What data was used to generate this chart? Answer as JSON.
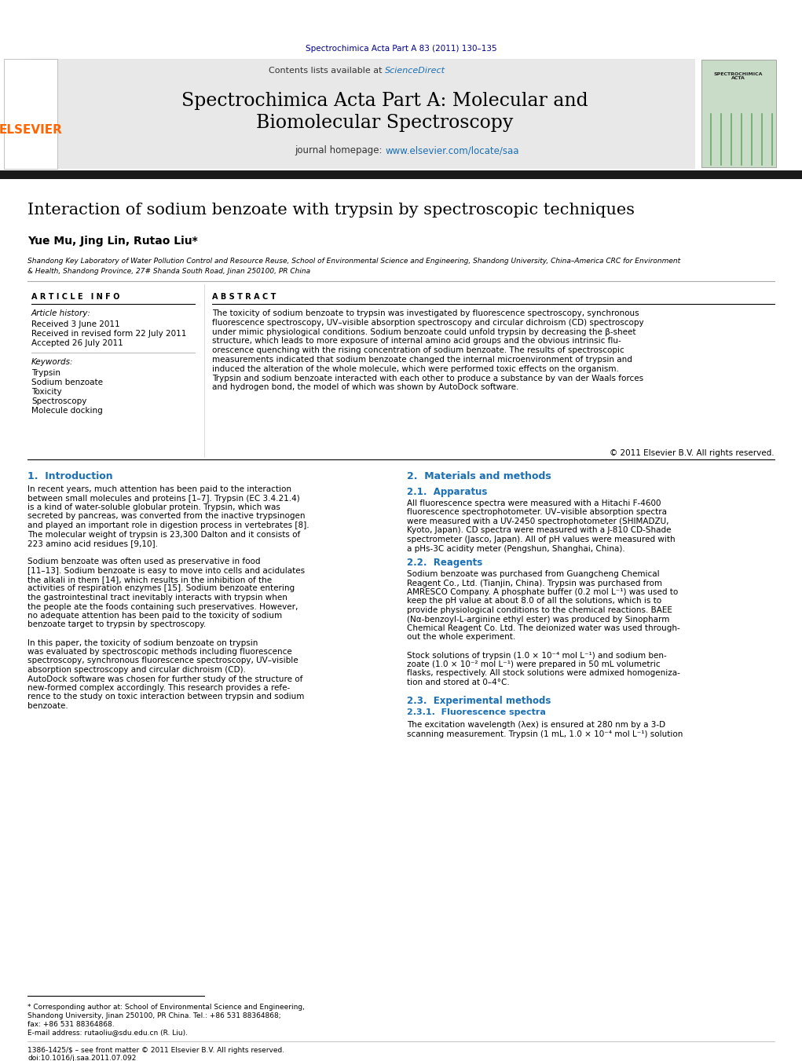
{
  "page_width": 10.21,
  "page_height": 13.51,
  "background_color": "#ffffff",
  "header_journal_ref": "Spectrochimica Acta Part A 83 (2011) 130–135",
  "header_journal_ref_color": "#00008B",
  "journal_banner_bg": "#e8e8e8",
  "sciencedirect_color": "#1a6fb5",
  "journal_name_line1": "Spectrochimica Acta Part A: Molecular and",
  "journal_name_line2": "Biomolecular Spectroscopy",
  "journal_homepage_prefix": "journal homepage: ",
  "journal_homepage_url": "www.elsevier.com/locate/saa",
  "elsevier_color": "#ff6600",
  "elsevier_text": "ELSEVIER",
  "black_bar_color": "#1a1a1a",
  "paper_title": "Interaction of sodium benzoate with trypsin by spectroscopic techniques",
  "authors": "Yue Mu, Jing Lin, Rutao Liu*",
  "affiliation_line1": "Shandong Key Laboratory of Water Pollution Control and Resource Reuse, School of Environmental Science and Engineering, Shandong University, China–America CRC for Environment",
  "affiliation_line2": "& Health, Shandong Province, 27# Shanda South Road, Jinan 250100, PR China",
  "article_info_header": "A R T I C L E   I N F O",
  "abstract_header": "A B S T R A C T",
  "article_history_label": "Article history:",
  "received_1": "Received 3 June 2011",
  "received_2": "Received in revised form 22 July 2011",
  "accepted": "Accepted 26 July 2011",
  "keywords_label": "Keywords:",
  "keywords": [
    "Trypsin",
    "Sodium benzoate",
    "Toxicity",
    "Spectroscopy",
    "Molecule docking"
  ],
  "abstract_text_lines": [
    "The toxicity of sodium benzoate to trypsin was investigated by fluorescence spectroscopy, synchronous",
    "fluorescence spectroscopy, UV–visible absorption spectroscopy and circular dichroism (CD) spectroscopy",
    "under mimic physiological conditions. Sodium benzoate could unfold trypsin by decreasing the β-sheet",
    "structure, which leads to more exposure of internal amino acid groups and the obvious intrinsic flu-",
    "orescence quenching with the rising concentration of sodium benzoate. The results of spectroscopic",
    "measurements indicated that sodium benzoate changed the internal microenvironment of trypsin and",
    "induced the alteration of the whole molecule, which were performed toxic effects on the organism.",
    "Trypsin and sodium benzoate interacted with each other to produce a substance by van der Waals forces",
    "and hydrogen bond, the model of which was shown by AutoDock software."
  ],
  "copyright": "© 2011 Elsevier B.V. All rights reserved.",
  "intro_header": "1.  Introduction",
  "materials_header": "2.  Materials and methods",
  "materials_sub1": "2.1.  Apparatus",
  "reagents_sub": "2.2.  Reagents",
  "exp_methods_sub": "2.3.  Experimental methods",
  "exp_methods_sub2": "2.3.1.  Fluorescence spectra",
  "footer_issn": "1386-1425/$ – see front matter © 2011 Elsevier B.V. All rights reserved.",
  "footer_doi": "doi:10.1016/j.saa.2011.07.092",
  "journal_cover_bg": "#c8dcc8",
  "text_color": "#000000",
  "link_color": "#1a6fb5",
  "intro_lines": [
    "In recent years, much attention has been paid to the interaction",
    "between small molecules and proteins [1–7]. Trypsin (EC 3.4.21.4)",
    "is a kind of water-soluble globular protein. Trypsin, which was",
    "secreted by pancreas, was converted from the inactive trypsinogen",
    "and played an important role in digestion process in vertebrates [8].",
    "The molecular weight of trypsin is 23,300 Dalton and it consists of",
    "223 amino acid residues [9,10].",
    "",
    "Sodium benzoate was often used as preservative in food",
    "[11–13]. Sodium benzoate is easy to move into cells and acidulates",
    "the alkali in them [14], which results in the inhibition of the",
    "activities of respiration enzymes [15]. Sodium benzoate entering",
    "the gastrointestinal tract inevitably interacts with trypsin when",
    "the people ate the foods containing such preservatives. However,",
    "no adequate attention has been paid to the toxicity of sodium",
    "benzoate target to trypsin by spectroscopy.",
    "",
    "In this paper, the toxicity of sodium benzoate on trypsin",
    "was evaluated by spectroscopic methods including fluorescence",
    "spectroscopy, synchronous fluorescence spectroscopy, UV–visible",
    "absorption spectroscopy and circular dichroism (CD).",
    "AutoDock software was chosen for further study of the structure of",
    "new-formed complex accordingly. This research provides a refe-",
    "rence to the study on toxic interaction between trypsin and sodium",
    "benzoate."
  ],
  "apparatus_lines": [
    "All fluorescence spectra were measured with a Hitachi F-4600",
    "fluorescence spectrophotometer. UV–visible absorption spectra",
    "were measured with a UV-2450 spectrophotometer (SHIMADZU,",
    "Kyoto, Japan). CD spectra were measured with a J-810 CD-Shade",
    "spectrometer (Jasco, Japan). All of pH values were measured with",
    "a pHs-3C acidity meter (Pengshun, Shanghai, China)."
  ],
  "reagents_lines": [
    "Sodium benzoate was purchased from Guangcheng Chemical",
    "Reagent Co., Ltd. (Tianjin, China). Trypsin was purchased from",
    "AMRESCO Company. A phosphate buffer (0.2 mol L⁻¹) was used to",
    "keep the pH value at about 8.0 of all the solutions, which is to",
    "provide physiological conditions to the chemical reactions. BAEE",
    "(Nα-benzoyl-L-arginine ethyl ester) was produced by Sinopharm",
    "Chemical Reagent Co. Ltd. The deionized water was used through-",
    "out the whole experiment.",
    "",
    "Stock solutions of trypsin (1.0 × 10⁻⁴ mol L⁻¹) and sodium ben-",
    "zoate (1.0 × 10⁻² mol L⁻¹) were prepared in 50 mL volumetric",
    "flasks, respectively. All stock solutions were admixed homogeniza-",
    "tion and stored at 0–4°C."
  ],
  "fluorescence_lines": [
    "The excitation wavelength (λex) is ensured at 280 nm by a 3-D",
    "scanning measurement. Trypsin (1 mL, 1.0 × 10⁻⁴ mol L⁻¹) solution"
  ],
  "footnote_lines": [
    "* Corresponding author at: School of Environmental Science and Engineering,",
    "Shandong University, Jinan 250100, PR China. Tel.: +86 531 88364868;",
    "fax: +86 531 88364868."
  ],
  "footnote_email": "E-mail address: rutaoliu@sdu.edu.cn (R. Liu)."
}
